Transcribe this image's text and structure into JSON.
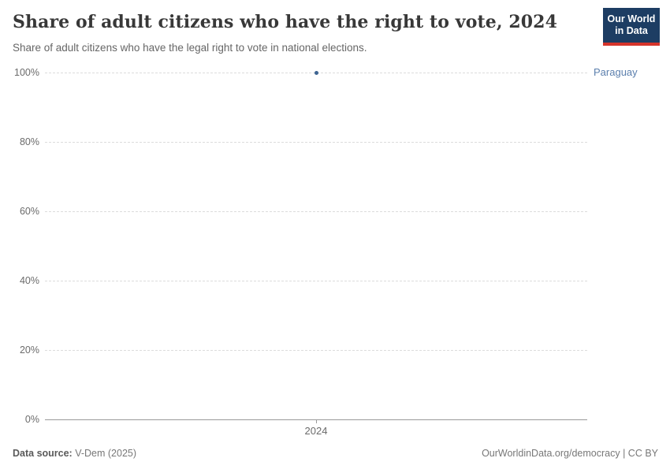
{
  "header": {
    "title": "Share of adult citizens who have the right to vote, 2024",
    "subtitle": "Share of adult citizens who have the legal right to vote in national elections."
  },
  "logo": {
    "line1": "Our World",
    "line2": "in Data",
    "bg_color": "#1d3d63",
    "stripe_color": "#d5342b"
  },
  "chart_data": {
    "type": "scatter",
    "title": "Share of adult citizens who have the right to vote, 2024",
    "subtitle": "Share of adult citizens who have the legal right to vote in national elections.",
    "x": [
      2024
    ],
    "series": [
      {
        "name": "Paraguay",
        "values": [
          100
        ],
        "point_color": "#3d6492",
        "label_color": "#5b7fad"
      }
    ],
    "xlabel": "",
    "ylabel": "",
    "ylim": [
      0,
      100
    ],
    "yticks": [
      0,
      20,
      40,
      60,
      80,
      100
    ],
    "ytick_suffix": "%",
    "xticks": [
      "2024"
    ],
    "grid": true,
    "legend_position": "entity-label-right-of-plot"
  },
  "footer": {
    "source_label": "Data source:",
    "source_value": " V-Dem (2025)",
    "credit": "OurWorldinData.org/democracy | CC BY"
  }
}
